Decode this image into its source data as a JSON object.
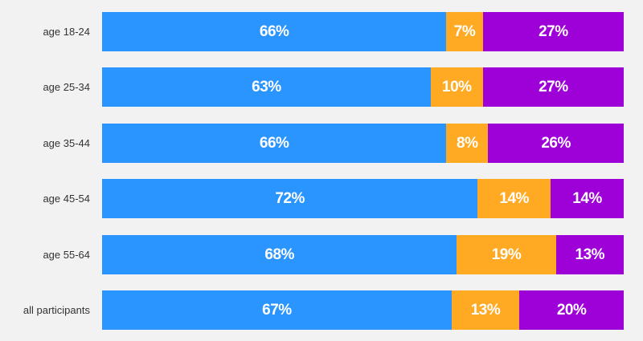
{
  "chart_data": {
    "type": "bar",
    "orientation": "horizontal",
    "stacked": true,
    "normalized_percent": true,
    "categories": [
      "age 18-24",
      "age 25-34",
      "age 35-44",
      "age 45-54",
      "age 55-64",
      "all participants"
    ],
    "series": [
      {
        "values": [
          66,
          63,
          66,
          72,
          68,
          67
        ],
        "color": "#2b95ff"
      },
      {
        "values": [
          7,
          10,
          8,
          14,
          19,
          13
        ],
        "color": "#ffaa22"
      },
      {
        "values": [
          27,
          27,
          26,
          14,
          13,
          20
        ],
        "color": "#9e00d8"
      }
    ],
    "value_labels_format": "{v}%",
    "label_color": "#ffffff",
    "xlim": [
      0,
      100
    ],
    "grid": false,
    "legend": "none"
  }
}
